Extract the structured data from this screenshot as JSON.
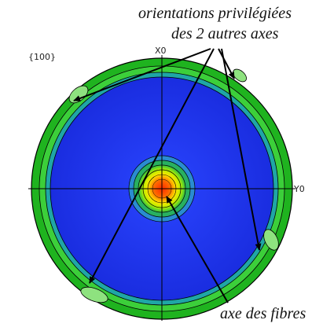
{
  "figure": {
    "projection_label": "{100}",
    "axis_x_label": "X0",
    "axis_y_label": "Y0",
    "annotation_top_line1": "orientations privilégiées",
    "annotation_top_line2": "des 2 autres axes",
    "annotation_bottom": "axe des fibres"
  },
  "colors": {
    "background_blue": "#1f33e6",
    "rim_green": "#22bb22",
    "rim_light_green": "#7ee07a",
    "center_red": "#ff2a00",
    "center_yellow": "#ffee00",
    "contour_line": "#000000"
  }
}
